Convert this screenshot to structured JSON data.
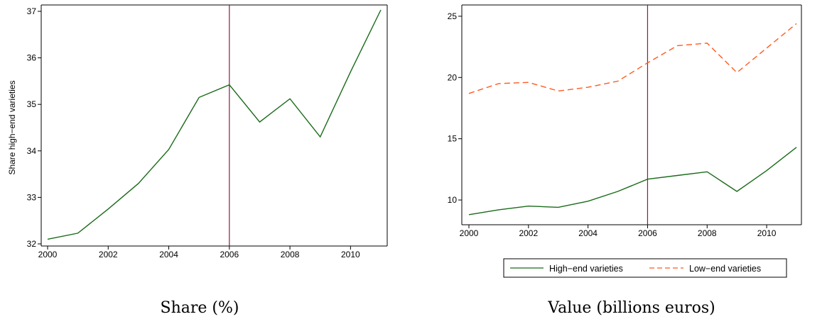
{
  "chart_data": [
    {
      "type": "line",
      "title": "",
      "xlabel": "",
      "ylabel": "Share high−end varieties",
      "caption": "Share (%)",
      "x": [
        2000,
        2001,
        2002,
        2003,
        2004,
        2005,
        2006,
        2007,
        2008,
        2009,
        2010,
        2011
      ],
      "series": [
        {
          "values": [
            32.1,
            32.23,
            32.75,
            33.3,
            34.03,
            35.15,
            35.42,
            34.62,
            35.12,
            34.3,
            35.7,
            37.03
          ],
          "color": "#1a6b1a",
          "dash": "solid"
        }
      ],
      "xlim": [
        2000,
        2011
      ],
      "ylim": [
        32,
        37
      ],
      "xticks": [
        "2000",
        "2002",
        "2004",
        "2006",
        "2008",
        "2010"
      ],
      "yticks": [
        "32",
        "33",
        "34",
        "35",
        "36",
        "37"
      ],
      "vline": {
        "x": 2006,
        "color": "#8b1a4a"
      },
      "grid": false
    },
    {
      "type": "line",
      "title": "",
      "xlabel": "",
      "ylabel": "",
      "caption": "Value (billions euros)",
      "x": [
        2000,
        2001,
        2002,
        2003,
        2004,
        2005,
        2006,
        2007,
        2008,
        2009,
        2010,
        2011
      ],
      "series": [
        {
          "name": "High−end varieties",
          "values": [
            8.8,
            9.2,
            9.5,
            9.4,
            9.9,
            10.7,
            11.7,
            12.0,
            12.3,
            10.7,
            12.4,
            14.3
          ],
          "color": "#1a6b1a",
          "dash": "solid"
        },
        {
          "name": "Low−end varieties",
          "values": [
            18.7,
            19.5,
            19.6,
            18.9,
            19.2,
            19.7,
            21.2,
            22.6,
            22.8,
            20.4,
            22.4,
            24.4
          ],
          "color": "#ff5a1f",
          "dash": "dashed"
        }
      ],
      "xlim": [
        2000,
        2011
      ],
      "ylim": [
        8.5,
        25.4
      ],
      "xticks": [
        "2000",
        "2002",
        "2004",
        "2006",
        "2008",
        "2010"
      ],
      "yticks": [
        "10",
        "15",
        "20",
        "25"
      ],
      "vline": {
        "x": 2006,
        "color": "#8b1a4a"
      },
      "legend": "bottom",
      "grid": false
    }
  ]
}
